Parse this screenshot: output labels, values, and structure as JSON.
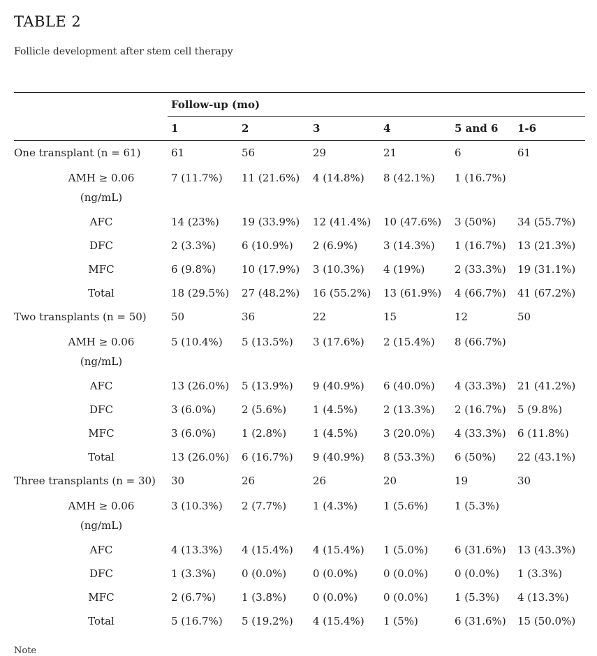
{
  "title": "TABLE 2",
  "subtitle": "Follicle development after stem cell therapy",
  "note": "Note",
  "table": {
    "group_header": "Follow-up (mo)",
    "columns": [
      "1",
      "2",
      "3",
      "4",
      "5 and 6",
      "1-6"
    ],
    "sections": [
      {
        "label": "One transplant (n = 61)",
        "counts": [
          "61",
          "56",
          "29",
          "21",
          "6",
          "61"
        ],
        "rows": [
          {
            "tall": true,
            "label_lines": [
              "AMH ≥ 0.06",
              "(ng/mL)"
            ],
            "values": [
              "7 (11.7%)",
              "11 (21.6%)",
              "4 (14.8%)",
              "8 (42.1%)",
              "1 (16.7%)",
              ""
            ]
          },
          {
            "label": "AFC",
            "values": [
              "14 (23%)",
              "19 (33.9%)",
              "12 (41.4%)",
              "10 (47.6%)",
              "3 (50%)",
              "34 (55.7%)"
            ]
          },
          {
            "label": "DFC",
            "values": [
              "2 (3.3%)",
              "6 (10.9%)",
              "2 (6.9%)",
              "3 (14.3%)",
              "1 (16.7%)",
              "13 (21.3%)"
            ]
          },
          {
            "label": "MFC",
            "values": [
              "6 (9.8%)",
              "10 (17.9%)",
              "3 (10.3%)",
              "4 (19%)",
              "2 (33.3%)",
              "19 (31.1%)"
            ]
          },
          {
            "label": "Total",
            "values": [
              "18 (29.5%)",
              "27 (48.2%)",
              "16 (55.2%)",
              "13 (61.9%)",
              "4 (66.7%)",
              "41 (67.2%)"
            ]
          }
        ]
      },
      {
        "label": "Two transplants (n = 50)",
        "counts": [
          "50",
          "36",
          "22",
          "15",
          "12",
          "50"
        ],
        "rows": [
          {
            "tall": true,
            "label_lines": [
              "AMH ≥ 0.06",
              "(ng/mL)"
            ],
            "values": [
              "5 (10.4%)",
              "5 (13.5%)",
              "3 (17.6%)",
              "2 (15.4%)",
              "8 (66.7%)",
              ""
            ]
          },
          {
            "label": "AFC",
            "values": [
              "13 (26.0%)",
              "5 (13.9%)",
              "9 (40.9%)",
              "6 (40.0%)",
              "4 (33.3%)",
              "21 (41.2%)"
            ]
          },
          {
            "label": "DFC",
            "values": [
              "3 (6.0%)",
              "2 (5.6%)",
              "1 (4.5%)",
              "2 (13.3%)",
              "2 (16.7%)",
              "5 (9.8%)"
            ]
          },
          {
            "label": "MFC",
            "values": [
              "3 (6.0%)",
              "1 (2.8%)",
              "1 (4.5%)",
              "3 (20.0%)",
              "4 (33.3%)",
              "6 (11.8%)"
            ]
          },
          {
            "label": "Total",
            "values": [
              "13 (26.0%)",
              "6 (16.7%)",
              "9 (40.9%)",
              "8 (53.3%)",
              "6 (50%)",
              "22 (43.1%)"
            ]
          }
        ]
      },
      {
        "label": "Three transplants (n = 30)",
        "counts": [
          "30",
          "26",
          "26",
          "20",
          "19",
          "30"
        ],
        "rows": [
          {
            "tall": true,
            "label_lines": [
              "AMH ≥ 0.06",
              "(ng/mL)"
            ],
            "values": [
              "3 (10.3%)",
              "2 (7.7%)",
              "1 (4.3%)",
              "1 (5.6%)",
              "1 (5.3%)",
              ""
            ]
          },
          {
            "label": "AFC",
            "values": [
              "4 (13.3%)",
              "4 (15.4%)",
              "4 (15.4%)",
              "1 (5.0%)",
              "6 (31.6%)",
              "13 (43.3%)"
            ]
          },
          {
            "label": "DFC",
            "values": [
              "1 (3.3%)",
              "0 (0.0%)",
              "0 (0.0%)",
              "0 (0.0%)",
              "0 (0.0%)",
              "1 (3.3%)"
            ]
          },
          {
            "label": "MFC",
            "values": [
              "2 (6.7%)",
              "1 (3.8%)",
              "0 (0.0%)",
              "0 (0.0%)",
              "1 (5.3%)",
              "4 (13.3%)"
            ]
          },
          {
            "label": "Total",
            "values": [
              "5 (16.7%)",
              "5 (19.2%)",
              "4 (15.4%)",
              "1 (5%)",
              "6 (31.6%)",
              "15 (50.0%)"
            ]
          }
        ]
      }
    ]
  }
}
